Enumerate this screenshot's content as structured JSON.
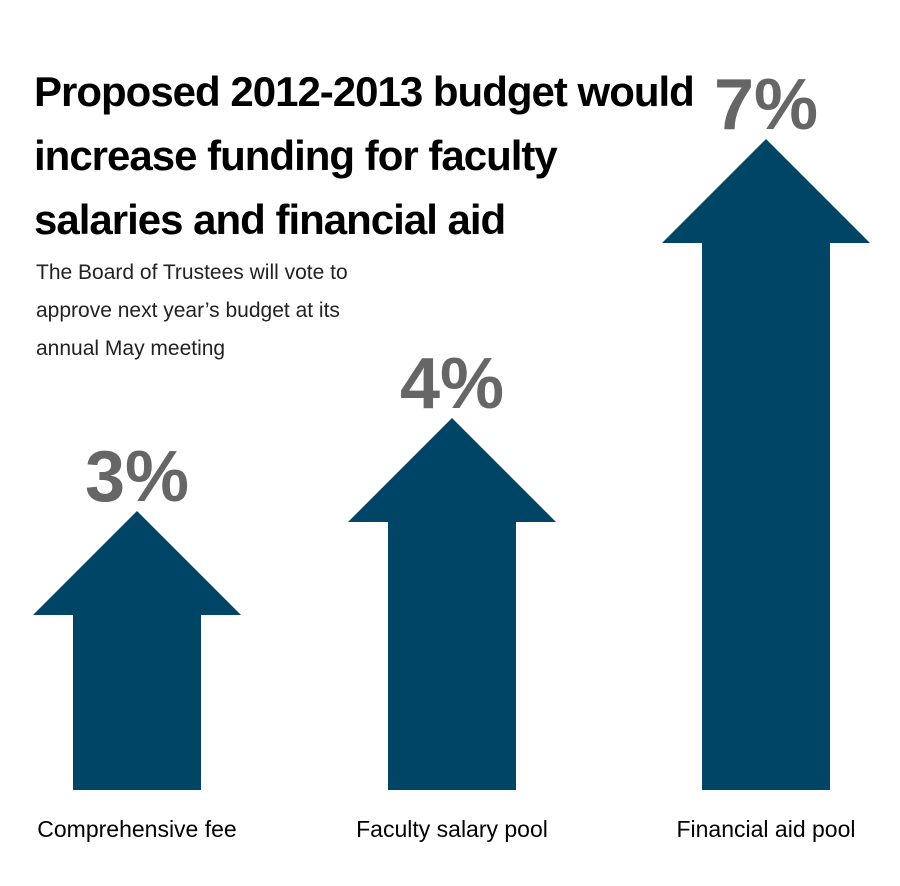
{
  "chart_data": {
    "type": "bar",
    "title": "Proposed 2012-2013 budget would increase funding for faculty salaries and financial aid",
    "subtitle": "The Board of Trustees will vote to approve next year’s budget at its annual May meeting",
    "categories": [
      "Comprehensive fee",
      "Faculty salary pool",
      "Financial aid pool"
    ],
    "values": [
      3,
      4,
      7
    ],
    "value_labels": [
      "3%",
      "4%",
      "7%"
    ],
    "unit": "%",
    "grid": false,
    "legend": "none"
  },
  "colors": {
    "arrow": "#004466",
    "value_label": "#666666",
    "category_label": "#000000"
  }
}
